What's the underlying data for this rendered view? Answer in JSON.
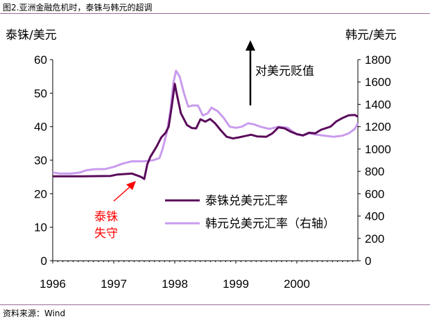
{
  "figure": {
    "title": "图2.亚洲金融危机时，泰铢与韩元的超调",
    "source": "资料来源：Wind"
  },
  "chart_data": {
    "type": "line",
    "xlim": [
      1996,
      2001
    ],
    "x_ticks": [
      1996,
      1997,
      1998,
      1999,
      2000
    ],
    "y_left": {
      "label": "泰铢/美元",
      "ylim": [
        0,
        60
      ],
      "ticks": [
        0,
        10,
        20,
        30,
        40,
        50,
        60
      ]
    },
    "y_right": {
      "label": "韩元/美元",
      "ylim": [
        0,
        1800
      ],
      "ticks": [
        0,
        200,
        400,
        600,
        800,
        1000,
        1200,
        1400,
        1600,
        1800
      ]
    },
    "grid": false,
    "legend_position": "bottom-right",
    "series": [
      {
        "name": "泰铢兑美元汇率",
        "axis": "left",
        "color": "#5a0a5a",
        "x": [
          1996.0,
          1996.5,
          1996.95,
          1997.05,
          1997.3,
          1997.45,
          1997.5,
          1997.55,
          1997.6,
          1997.7,
          1997.78,
          1997.85,
          1997.9,
          1997.95,
          1998.0,
          1998.03,
          1998.1,
          1998.2,
          1998.28,
          1998.35,
          1998.42,
          1998.5,
          1998.58,
          1998.66,
          1998.75,
          1998.85,
          1998.95,
          1999.05,
          1999.15,
          1999.25,
          1999.35,
          1999.5,
          1999.6,
          1999.7,
          1999.8,
          1999.9,
          2000.0,
          2000.1,
          2000.2,
          2000.3,
          2000.4,
          2000.55,
          2000.65,
          2000.75,
          2000.85,
          2000.95,
          2001.0
        ],
        "y": [
          25.2,
          25.2,
          25.3,
          25.7,
          26.0,
          25.0,
          24.4,
          28.8,
          31.0,
          34.0,
          36.8,
          38.2,
          40.0,
          46.0,
          52.8,
          50.0,
          44.0,
          40.5,
          39.6,
          39.5,
          42.2,
          41.5,
          42.3,
          41.0,
          39.0,
          37.0,
          36.5,
          36.8,
          37.2,
          37.6,
          37.1,
          37.0,
          38.0,
          39.8,
          39.5,
          38.5,
          37.8,
          37.4,
          38.2,
          38.0,
          39.1,
          40.0,
          41.6,
          42.6,
          43.4,
          43.5,
          43.0
        ]
      },
      {
        "name": "韩元兑美元汇率（右轴）",
        "axis": "right",
        "color": "#c99bee",
        "x": [
          1996.0,
          1996.12,
          1996.3,
          1996.45,
          1996.55,
          1996.7,
          1996.85,
          1997.0,
          1997.15,
          1997.3,
          1997.5,
          1997.65,
          1997.75,
          1997.8,
          1997.87,
          1997.93,
          1997.98,
          1998.02,
          1998.08,
          1998.15,
          1998.22,
          1998.3,
          1998.38,
          1998.46,
          1998.54,
          1998.6,
          1998.7,
          1998.8,
          1998.9,
          1999.0,
          1999.1,
          1999.2,
          1999.3,
          1999.4,
          1999.55,
          1999.7,
          1999.85,
          2000.0,
          2000.1,
          2000.2,
          2000.3,
          2000.45,
          2000.6,
          2000.75,
          2000.85,
          2000.95,
          2001.0
        ],
        "y": [
          790,
          780,
          780,
          790,
          810,
          820,
          820,
          840,
          870,
          890,
          890,
          900,
          920,
          1000,
          1150,
          1350,
          1600,
          1700,
          1650,
          1500,
          1380,
          1390,
          1390,
          1300,
          1320,
          1370,
          1340,
          1280,
          1200,
          1190,
          1200,
          1230,
          1220,
          1200,
          1180,
          1200,
          1190,
          1130,
          1120,
          1140,
          1130,
          1120,
          1110,
          1120,
          1140,
          1180,
          1230
        ]
      }
    ],
    "annotations": {
      "arrow_text": "对美元贬值",
      "red_text_line1": "泰铢",
      "red_text_line2": "失守",
      "red_color": "#ff0000"
    }
  }
}
